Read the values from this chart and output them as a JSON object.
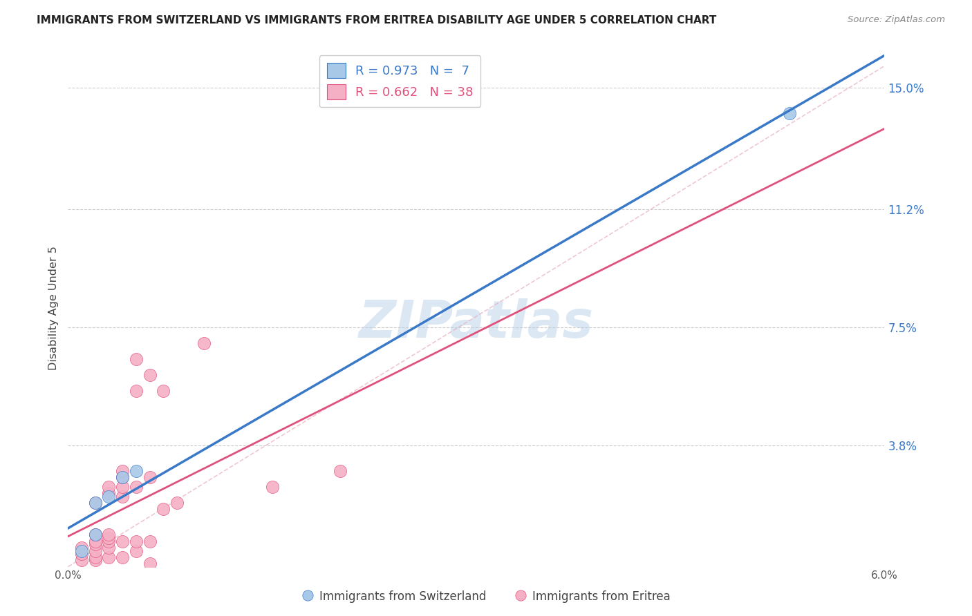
{
  "title": "IMMIGRANTS FROM SWITZERLAND VS IMMIGRANTS FROM ERITREA DISABILITY AGE UNDER 5 CORRELATION CHART",
  "source": "Source: ZipAtlas.com",
  "ylabel_label": "Disability Age Under 5",
  "xmin": 0.0,
  "xmax": 0.06,
  "ymin": 0.0,
  "ymax": 0.162,
  "yticks": [
    0.0,
    0.038,
    0.075,
    0.112,
    0.15
  ],
  "ytick_labels": [
    "",
    "3.8%",
    "7.5%",
    "11.2%",
    "15.0%"
  ],
  "xticks": [
    0.0,
    0.01,
    0.02,
    0.03,
    0.04,
    0.05,
    0.06
  ],
  "xtick_labels": [
    "0.0%",
    "",
    "",
    "",
    "",
    "",
    "6.0%"
  ],
  "legend_label1": "R = 0.973   N =  7",
  "legend_label2": "R = 0.662   N = 38",
  "color_swiss": "#a8c8e8",
  "color_eritrea": "#f5b0c5",
  "line_color_swiss": "#3a78c8",
  "line_color_eritrea": "#e0507a",
  "dash_color": "#e0a0b0",
  "watermark": "ZIPatlas",
  "switzerland_points": [
    [
      0.001,
      0.005
    ],
    [
      0.002,
      0.01
    ],
    [
      0.002,
      0.02
    ],
    [
      0.003,
      0.022
    ],
    [
      0.004,
      0.028
    ],
    [
      0.005,
      0.03
    ],
    [
      0.053,
      0.142
    ]
  ],
  "eritrea_points": [
    [
      0.001,
      0.002
    ],
    [
      0.001,
      0.004
    ],
    [
      0.001,
      0.006
    ],
    [
      0.002,
      0.002
    ],
    [
      0.002,
      0.003
    ],
    [
      0.002,
      0.005
    ],
    [
      0.002,
      0.007
    ],
    [
      0.002,
      0.008
    ],
    [
      0.002,
      0.01
    ],
    [
      0.002,
      0.02
    ],
    [
      0.003,
      0.003
    ],
    [
      0.003,
      0.006
    ],
    [
      0.003,
      0.008
    ],
    [
      0.003,
      0.009
    ],
    [
      0.003,
      0.01
    ],
    [
      0.003,
      0.023
    ],
    [
      0.003,
      0.025
    ],
    [
      0.004,
      0.003
    ],
    [
      0.004,
      0.008
    ],
    [
      0.004,
      0.022
    ],
    [
      0.004,
      0.025
    ],
    [
      0.004,
      0.028
    ],
    [
      0.004,
      0.03
    ],
    [
      0.005,
      0.005
    ],
    [
      0.005,
      0.008
    ],
    [
      0.005,
      0.025
    ],
    [
      0.005,
      0.055
    ],
    [
      0.005,
      0.065
    ],
    [
      0.006,
      0.001
    ],
    [
      0.006,
      0.008
    ],
    [
      0.006,
      0.028
    ],
    [
      0.006,
      0.06
    ],
    [
      0.007,
      0.018
    ],
    [
      0.007,
      0.055
    ],
    [
      0.008,
      0.02
    ],
    [
      0.01,
      0.07
    ],
    [
      0.015,
      0.025
    ],
    [
      0.02,
      0.03
    ]
  ]
}
